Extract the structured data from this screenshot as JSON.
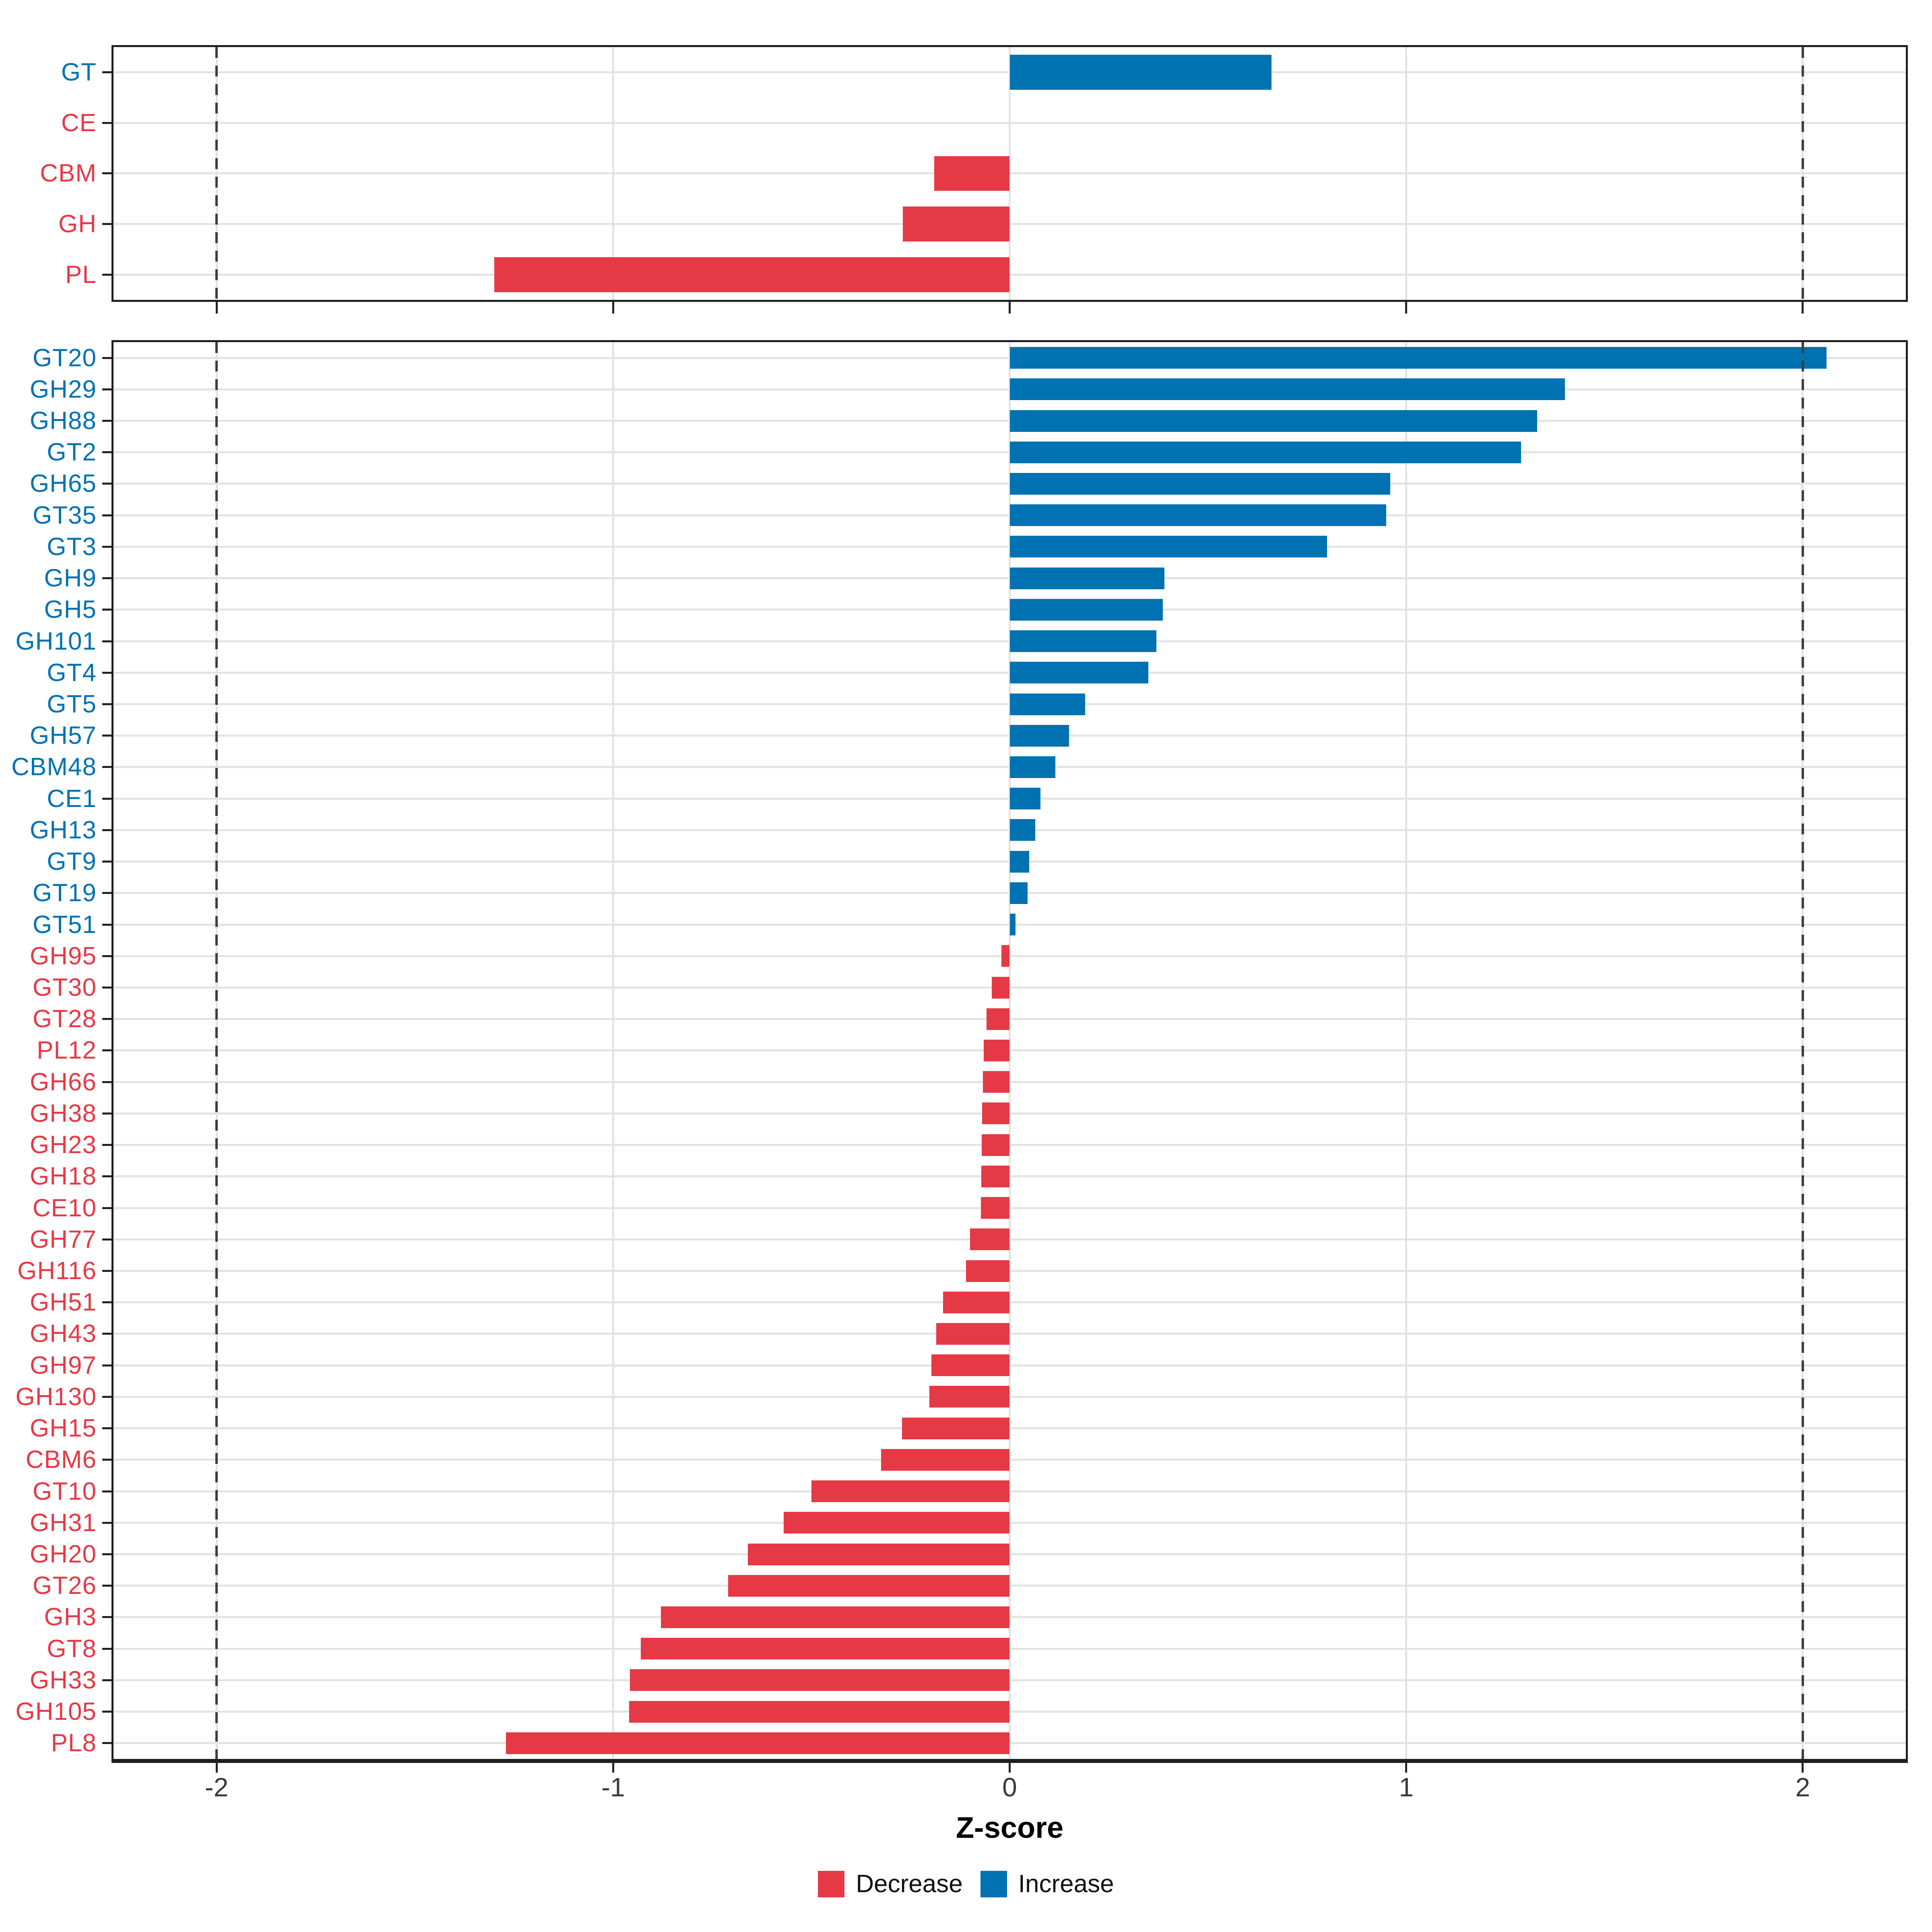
{
  "chart_data": {
    "type": "bar",
    "orientation": "horizontal",
    "xlabel": "Z-score",
    "xlim": [
      -2.26,
      2.26
    ],
    "x_ticks": [
      -2,
      -1,
      0,
      1,
      2
    ],
    "x_tick_labels": [
      "-2",
      "-1",
      "0",
      "1",
      "2"
    ],
    "dashed_reference_lines": [
      -2,
      2
    ],
    "grid": true,
    "legend_position": "bottom",
    "colors": {
      "increase": "#0072B2",
      "decrease": "#E63946"
    },
    "legend": [
      {
        "label": "Decrease",
        "color": "#E63946"
      },
      {
        "label": "Increase",
        "color": "#0072B2"
      }
    ],
    "panels": [
      {
        "name": "cazyme-class-panel",
        "categories": [
          "GT",
          "CE",
          "CBM",
          "GH",
          "PL"
        ],
        "values": [
          0.66,
          0.0,
          -0.19,
          -0.27,
          -1.3
        ],
        "directions": [
          "increase",
          "decrease",
          "decrease",
          "decrease",
          "decrease"
        ]
      },
      {
        "name": "cazyme-family-panel",
        "categories": [
          "GT20",
          "GH29",
          "GH88",
          "GT2",
          "GH65",
          "GT35",
          "GT3",
          "GH9",
          "GH5",
          "GH101",
          "GT4",
          "GT5",
          "GH57",
          "CBM48",
          "CE1",
          "GH13",
          "GT9",
          "GT19",
          "GT51",
          "GH95",
          "GT30",
          "GT28",
          "PL12",
          "GH66",
          "GH38",
          "GH23",
          "GH18",
          "CE10",
          "GH77",
          "GH116",
          "GH51",
          "GH43",
          "GH97",
          "GH130",
          "GH15",
          "CBM6",
          "GT10",
          "GH31",
          "GH20",
          "GT26",
          "GH3",
          "GT8",
          "GH33",
          "GH105",
          "PL8"
        ],
        "values": [
          2.06,
          1.4,
          1.33,
          1.29,
          0.96,
          0.95,
          0.8,
          0.39,
          0.386,
          0.37,
          0.35,
          0.19,
          0.15,
          0.115,
          0.078,
          0.064,
          0.049,
          0.045,
          0.015,
          -0.021,
          -0.045,
          -0.058,
          -0.065,
          -0.068,
          -0.07,
          -0.071,
          -0.072,
          -0.073,
          -0.1,
          -0.11,
          -0.168,
          -0.185,
          -0.197,
          -0.203,
          -0.272,
          -0.324,
          -0.5,
          -0.57,
          -0.66,
          -0.71,
          -0.88,
          -0.93,
          -0.958,
          -0.96,
          -1.27
        ],
        "directions": [
          "increase",
          "increase",
          "increase",
          "increase",
          "increase",
          "increase",
          "increase",
          "increase",
          "increase",
          "increase",
          "increase",
          "increase",
          "increase",
          "increase",
          "increase",
          "increase",
          "increase",
          "increase",
          "increase",
          "decrease",
          "decrease",
          "decrease",
          "decrease",
          "decrease",
          "decrease",
          "decrease",
          "decrease",
          "decrease",
          "decrease",
          "decrease",
          "decrease",
          "decrease",
          "decrease",
          "decrease",
          "decrease",
          "decrease",
          "decrease",
          "decrease",
          "decrease",
          "decrease",
          "decrease",
          "decrease",
          "decrease",
          "decrease",
          "decrease"
        ]
      }
    ]
  }
}
